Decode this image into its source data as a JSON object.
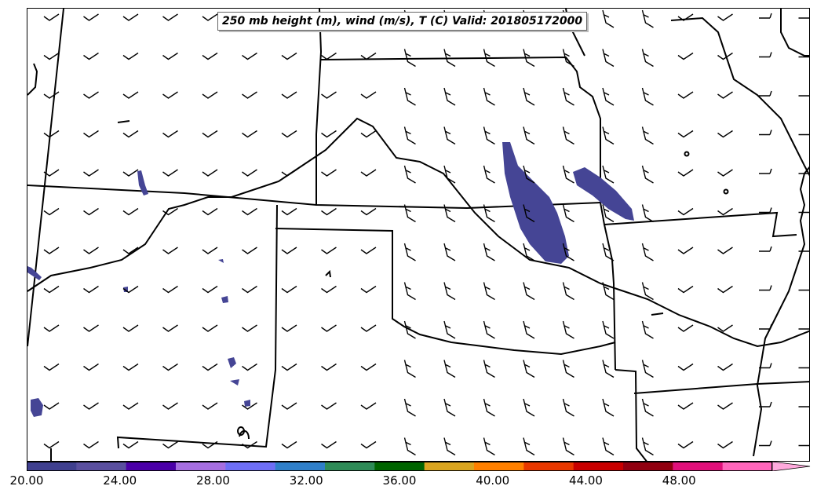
{
  "title": "250 mb height (m), wind (m/s), T (C) Valid: 201805172000",
  "colorbar": {
    "min": 20,
    "max": 52,
    "colors": [
      "#3f3f8f",
      "#5a4f9f",
      "#4b00a8",
      "#a66ee0",
      "#6e6ef5",
      "#2f7fc9",
      "#2e8b57",
      "#006400",
      "#daa520",
      "#ff8000",
      "#e83800",
      "#c80000",
      "#900010",
      "#e0107a",
      "#ff66bb"
    ],
    "extend_color": "#ffaadd",
    "tick_labels": [
      "20.00",
      "24.00",
      "28.00",
      "32.00",
      "36.00",
      "40.00",
      "44.00",
      "48.00"
    ]
  },
  "colors": {
    "temperature_fill": "#454595",
    "boundary": "#000000",
    "barb": "#000000"
  }
}
